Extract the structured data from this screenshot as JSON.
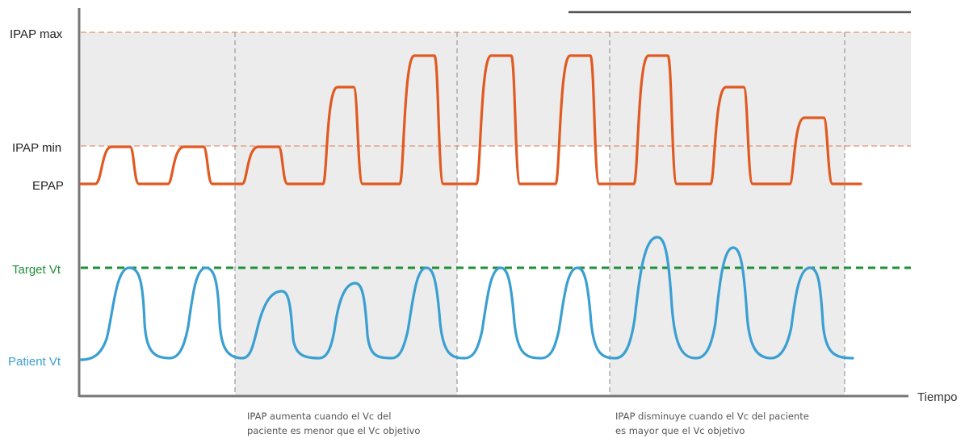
{
  "labels": {
    "ipap_max": "IPAP max",
    "ipap_min": "IPAP min",
    "epap": "EPAP",
    "target_vt": "Target Vt",
    "patient_vt": "Patient Vt",
    "time_axis": "Tiempo"
  },
  "captions": {
    "increase_line1": "IPAP aumenta cuando el Vc del",
    "increase_line2": "paciente es menor que el Vc objetivo",
    "decrease_line1": "IPAP disminuye cuando el Vc del paciente",
    "decrease_line2": "es mayor que el Vc objetivo"
  },
  "colors": {
    "pressure": "#e05a22",
    "volume": "#3a9fd1",
    "target": "#1f8f3a",
    "shade": "#ececec",
    "axis": "#777777",
    "guide": "#888888"
  }
}
